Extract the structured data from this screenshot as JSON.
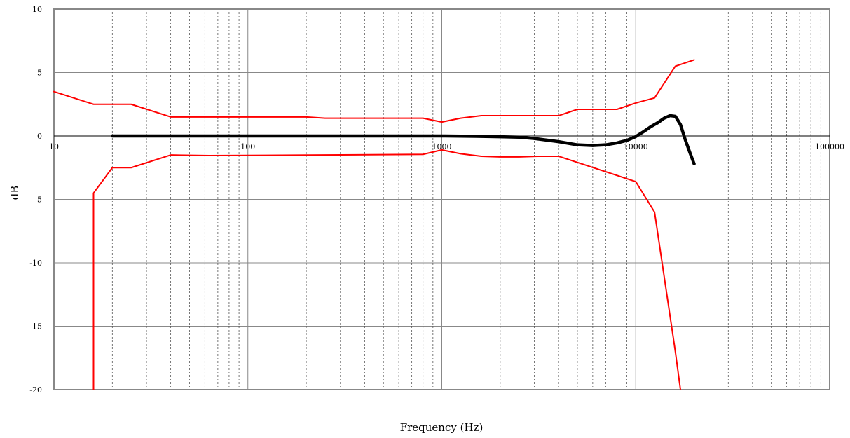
{
  "chart_data": {
    "type": "line",
    "title": "",
    "xlabel": "Frequency (Hz)",
    "ylabel": "dB",
    "xscale": "log",
    "xlim": [
      10,
      100000
    ],
    "ylim": [
      -20,
      10
    ],
    "grid": true,
    "legend": "none",
    "x_tick_labels": [
      "10",
      "100",
      "1000",
      "10000",
      "100000"
    ],
    "y_tick_labels": [
      "10",
      "5",
      "0",
      "-5",
      "-10",
      "-15",
      "-20"
    ],
    "series": [
      {
        "color": "#ff0000",
        "x": [
          10,
          16,
          25,
          40,
          200,
          250,
          800,
          1000,
          1250,
          1600,
          2000,
          2500,
          3150,
          4000,
          5000,
          6300,
          8000,
          10000,
          12500,
          16000,
          20000
        ],
        "y": [
          3.5,
          2.5,
          2.5,
          1.5,
          1.5,
          1.4,
          1.4,
          1.1,
          1.4,
          1.6,
          1.6,
          1.6,
          1.6,
          1.6,
          2.1,
          2.1,
          2.1,
          2.6,
          3.0,
          5.5,
          6.0
        ]
      },
      {
        "color": "#ff0000",
        "x": [
          16,
          16,
          20,
          25,
          40,
          63,
          250,
          800,
          1000,
          1250,
          1600,
          2000,
          2500,
          3150,
          4000,
          10000,
          12500,
          16000,
          17000
        ],
        "y": [
          -20,
          -4.5,
          -2.5,
          -2.5,
          -1.5,
          -1.55,
          -1.5,
          -1.45,
          -1.1,
          -1.4,
          -1.6,
          -1.65,
          -1.65,
          -1.6,
          -1.6,
          -3.6,
          -6.0,
          -17.0,
          -20
        ]
      },
      {
        "color": "#000000",
        "x": [
          20,
          50,
          100,
          200,
          500,
          1000,
          1500,
          2000,
          2500,
          3000,
          4000,
          5000,
          6000,
          7000,
          8000,
          9000,
          10000,
          11000,
          12000,
          13000,
          14000,
          15000,
          16000,
          17000,
          18000,
          19000,
          20000
        ],
        "y": [
          0,
          0,
          0,
          0,
          0,
          0,
          -0.03,
          -0.06,
          -0.1,
          -0.2,
          -0.45,
          -0.7,
          -0.75,
          -0.7,
          -0.55,
          -0.35,
          -0.05,
          0.35,
          0.75,
          1.05,
          1.4,
          1.6,
          1.55,
          0.9,
          -0.3,
          -1.3,
          -2.2
        ]
      }
    ]
  }
}
